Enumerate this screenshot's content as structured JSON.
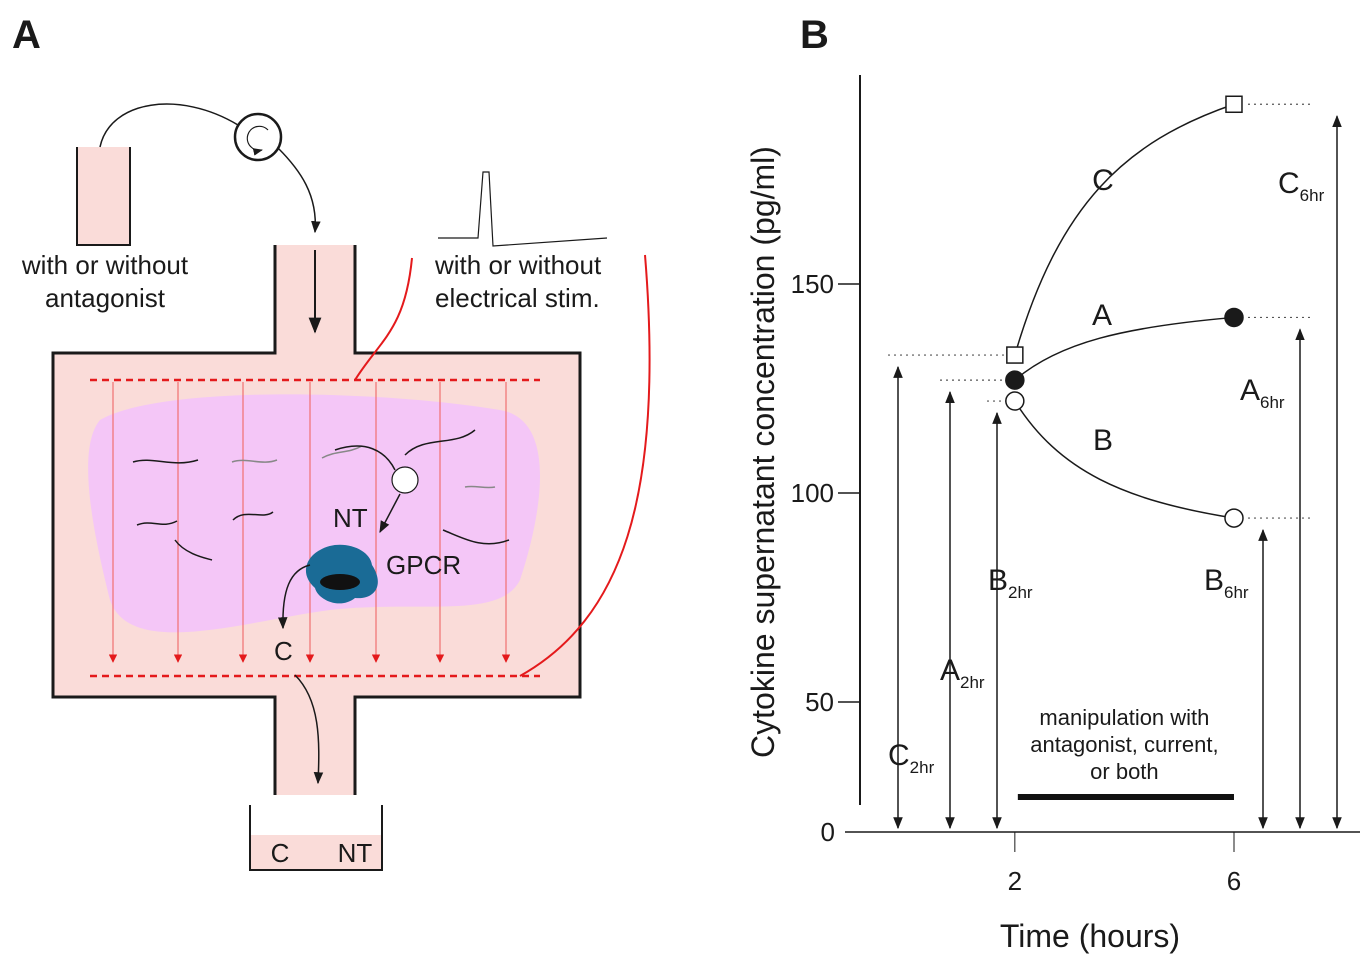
{
  "diagram": {
    "panel_label": "A",
    "inlet_label": [
      "with or without",
      "antagonist"
    ],
    "stim_label": [
      "with or without",
      "electrical stim."
    ],
    "neurotransmitter": "NT",
    "receptor": "GPCR",
    "cytokine": "C",
    "collection": [
      "C",
      "NT"
    ]
  },
  "chart_data": {
    "type": "line",
    "panel_label": "B",
    "x_label": "Time (hours)",
    "y_label": "Cytokine supernatant concentration (pg/ml)",
    "x": [
      2,
      6
    ],
    "xlim": [
      -1.1,
      8.3
    ],
    "xticks": [
      2,
      6
    ],
    "ylim": [
      0,
      200
    ],
    "yticks": [
      0,
      50,
      100,
      150
    ],
    "subscripts": [
      "2hr",
      "6hr"
    ],
    "series": [
      {
        "name": "C",
        "marker": "square-open",
        "color": "#1a1a1a",
        "values": [
          133,
          193
        ]
      },
      {
        "name": "A",
        "marker": "circle-filled",
        "color": "#1a1a1a",
        "values": [
          127,
          142
        ]
      },
      {
        "name": "B",
        "marker": "circle-open",
        "color": "#1a1a1a",
        "values": [
          122,
          94
        ]
      }
    ],
    "annotation": [
      "manipulation with",
      "antagonist, current,",
      "or both"
    ]
  }
}
